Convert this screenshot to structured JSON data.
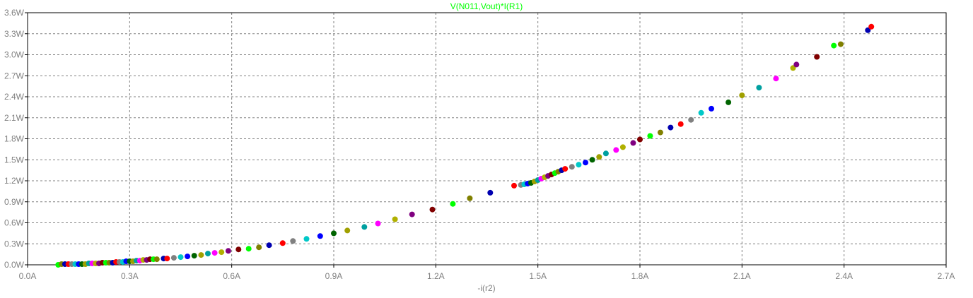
{
  "chart_data": {
    "type": "scatter",
    "title": "V(N011,Vout)*I(R1)",
    "xlabel": "-i(r2)",
    "ylabel": "",
    "xlim": [
      0,
      2.7
    ],
    "ylim": [
      0,
      3.6
    ],
    "x_ticks": [
      "0.0A",
      "0.3A",
      "0.6A",
      "0.9A",
      "1.2A",
      "1.5A",
      "1.8A",
      "2.1A",
      "2.4A",
      "2.7A"
    ],
    "y_ticks": [
      "0.0W",
      "0.3W",
      "0.6W",
      "0.9W",
      "1.2W",
      "1.5W",
      "1.8W",
      "2.1W",
      "2.4W",
      "2.7W",
      "3.0W",
      "3.3W",
      "3.6W"
    ],
    "x_tick_values": [
      0,
      0.3,
      0.6,
      0.9,
      1.2,
      1.5,
      1.8,
      2.1,
      2.4,
      2.7
    ],
    "y_tick_values": [
      0,
      0.3,
      0.6,
      0.9,
      1.2,
      1.5,
      1.8,
      2.1,
      2.4,
      2.7,
      3.0,
      3.3,
      3.6
    ],
    "grid": true,
    "colors": {
      "trace_title": "#00ff00",
      "grid": "#808080",
      "tick_text": "#808080",
      "point_palette": [
        "#00ff00",
        "#ff0000",
        "#0000ff",
        "#00a0a0",
        "#800080",
        "#808000",
        "#808080",
        "#006400",
        "#ff00ff",
        "#800000",
        "#0000b0",
        "#00c8c8",
        "#a0a000",
        "#b0b000"
      ]
    },
    "points": [
      [
        0.09,
        0.0
      ],
      [
        0.1,
        0.01
      ],
      [
        0.11,
        0.01
      ],
      [
        0.12,
        0.01
      ],
      [
        0.13,
        0.01
      ],
      [
        0.14,
        0.01
      ],
      [
        0.15,
        0.01
      ],
      [
        0.16,
        0.01
      ],
      [
        0.17,
        0.01
      ],
      [
        0.18,
        0.02
      ],
      [
        0.19,
        0.02
      ],
      [
        0.2,
        0.02
      ],
      [
        0.21,
        0.02
      ],
      [
        0.22,
        0.03
      ],
      [
        0.23,
        0.03
      ],
      [
        0.24,
        0.03
      ],
      [
        0.25,
        0.03
      ],
      [
        0.26,
        0.04
      ],
      [
        0.27,
        0.04
      ],
      [
        0.28,
        0.04
      ],
      [
        0.29,
        0.05
      ],
      [
        0.3,
        0.05
      ],
      [
        0.31,
        0.05
      ],
      [
        0.32,
        0.06
      ],
      [
        0.33,
        0.06
      ],
      [
        0.34,
        0.07
      ],
      [
        0.35,
        0.07
      ],
      [
        0.36,
        0.08
      ],
      [
        0.37,
        0.08
      ],
      [
        0.38,
        0.08
      ],
      [
        0.4,
        0.09
      ],
      [
        0.41,
        0.09
      ],
      [
        0.43,
        0.1
      ],
      [
        0.45,
        0.11
      ],
      [
        0.47,
        0.12
      ],
      [
        0.49,
        0.13
      ],
      [
        0.51,
        0.14
      ],
      [
        0.53,
        0.16
      ],
      [
        0.55,
        0.17
      ],
      [
        0.57,
        0.18
      ],
      [
        0.59,
        0.2
      ],
      [
        0.62,
        0.22
      ],
      [
        0.65,
        0.23
      ],
      [
        0.68,
        0.25
      ],
      [
        0.71,
        0.28
      ],
      [
        0.75,
        0.31
      ],
      [
        0.78,
        0.34
      ],
      [
        0.82,
        0.37
      ],
      [
        0.86,
        0.41
      ],
      [
        0.9,
        0.45
      ],
      [
        0.94,
        0.49
      ],
      [
        0.99,
        0.54
      ],
      [
        1.03,
        0.59
      ],
      [
        1.08,
        0.65
      ],
      [
        1.13,
        0.72
      ],
      [
        1.19,
        0.79
      ],
      [
        1.25,
        0.87
      ],
      [
        1.3,
        0.95
      ],
      [
        1.36,
        1.03
      ],
      [
        1.43,
        1.13
      ],
      [
        1.45,
        1.14
      ],
      [
        1.46,
        1.15
      ],
      [
        1.47,
        1.16
      ],
      [
        1.48,
        1.17
      ],
      [
        1.49,
        1.19
      ],
      [
        1.5,
        1.21
      ],
      [
        1.51,
        1.23
      ],
      [
        1.52,
        1.25
      ],
      [
        1.53,
        1.27
      ],
      [
        1.54,
        1.29
      ],
      [
        1.55,
        1.31
      ],
      [
        1.56,
        1.33
      ],
      [
        1.57,
        1.35
      ],
      [
        1.58,
        1.37
      ],
      [
        1.6,
        1.4
      ],
      [
        1.62,
        1.43
      ],
      [
        1.64,
        1.46
      ],
      [
        1.66,
        1.5
      ],
      [
        1.68,
        1.54
      ],
      [
        1.7,
        1.59
      ],
      [
        1.73,
        1.64
      ],
      [
        1.75,
        1.68
      ],
      [
        1.78,
        1.74
      ],
      [
        1.8,
        1.79
      ],
      [
        1.83,
        1.84
      ],
      [
        1.86,
        1.89
      ],
      [
        1.89,
        1.96
      ],
      [
        1.92,
        2.01
      ],
      [
        1.95,
        2.07
      ],
      [
        1.98,
        2.17
      ],
      [
        2.01,
        2.23
      ],
      [
        2.06,
        2.32
      ],
      [
        2.1,
        2.42
      ],
      [
        2.15,
        2.53
      ],
      [
        2.2,
        2.66
      ],
      [
        2.25,
        2.81
      ],
      [
        2.26,
        2.86
      ],
      [
        2.32,
        2.97
      ],
      [
        2.37,
        3.13
      ],
      [
        2.39,
        3.15
      ],
      [
        2.47,
        3.35
      ],
      [
        2.48,
        3.4
      ]
    ]
  }
}
